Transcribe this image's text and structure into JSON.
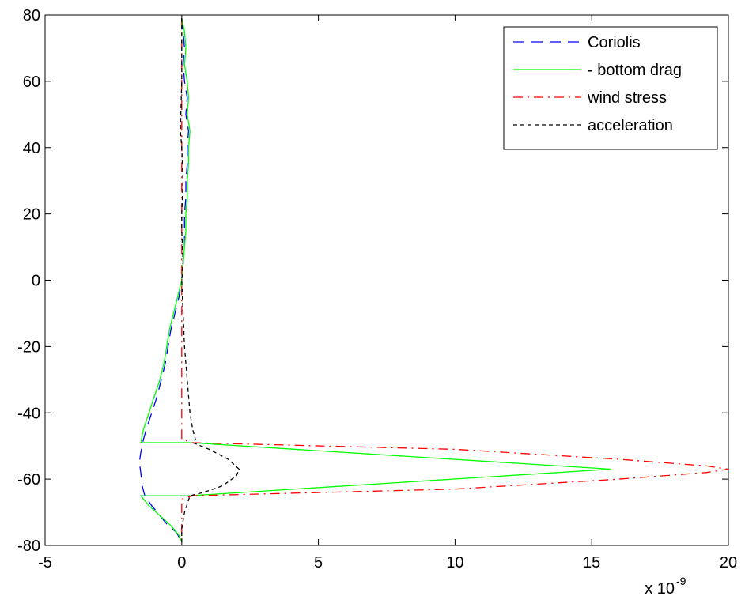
{
  "chart_data": {
    "type": "line",
    "title": "",
    "xlabel": "",
    "ylabel": "",
    "x_multiplier_label": "x 10",
    "x_multiplier_exponent": "-9",
    "xlim": [
      -5,
      20
    ],
    "ylim": [
      -80,
      80
    ],
    "xticks": [
      -5,
      0,
      5,
      10,
      15,
      20
    ],
    "yticks": [
      80,
      60,
      40,
      20,
      0,
      -20,
      -40,
      -60,
      -80
    ],
    "grid": false,
    "legend_position": "top-right",
    "series": [
      {
        "name": "Coriolis",
        "color": "#0000ff",
        "dash": "dashed-long",
        "points": [
          [
            0.0,
            79
          ],
          [
            0.05,
            75
          ],
          [
            0.1,
            70
          ],
          [
            0.05,
            65
          ],
          [
            0.1,
            60
          ],
          [
            0.2,
            55
          ],
          [
            0.15,
            50
          ],
          [
            0.25,
            45
          ],
          [
            0.2,
            40
          ],
          [
            0.2,
            35
          ],
          [
            0.15,
            30
          ],
          [
            0.15,
            25
          ],
          [
            0.1,
            20
          ],
          [
            0.1,
            15
          ],
          [
            0.1,
            10
          ],
          [
            0.05,
            5
          ],
          [
            0.0,
            0
          ],
          [
            -0.1,
            -5
          ],
          [
            -0.25,
            -10
          ],
          [
            -0.4,
            -15
          ],
          [
            -0.5,
            -20
          ],
          [
            -0.6,
            -25
          ],
          [
            -0.75,
            -30
          ],
          [
            -0.9,
            -35
          ],
          [
            -1.1,
            -40
          ],
          [
            -1.3,
            -45
          ],
          [
            -1.4,
            -48
          ],
          [
            -1.5,
            -52
          ],
          [
            -1.55,
            -55
          ],
          [
            -1.5,
            -58
          ],
          [
            -1.45,
            -62
          ],
          [
            -1.35,
            -65
          ],
          [
            -1.1,
            -68
          ],
          [
            -0.8,
            -71
          ],
          [
            -0.5,
            -74
          ],
          [
            -0.2,
            -76
          ],
          [
            0.0,
            -79
          ]
        ]
      },
      {
        "name": "- bottom drag",
        "color": "#00ff00",
        "dash": "solid",
        "points": [
          [
            0.0,
            79
          ],
          [
            0.1,
            75
          ],
          [
            0.15,
            70
          ],
          [
            0.1,
            65
          ],
          [
            0.2,
            60
          ],
          [
            0.25,
            55
          ],
          [
            0.2,
            50
          ],
          [
            0.3,
            45
          ],
          [
            0.25,
            40
          ],
          [
            0.25,
            35
          ],
          [
            0.2,
            30
          ],
          [
            0.2,
            25
          ],
          [
            0.15,
            20
          ],
          [
            0.15,
            15
          ],
          [
            0.1,
            10
          ],
          [
            0.05,
            5
          ],
          [
            0.0,
            0
          ],
          [
            -0.15,
            -5
          ],
          [
            -0.3,
            -10
          ],
          [
            -0.45,
            -15
          ],
          [
            -0.55,
            -20
          ],
          [
            -0.65,
            -25
          ],
          [
            -0.8,
            -30
          ],
          [
            -1.0,
            -35
          ],
          [
            -1.2,
            -40
          ],
          [
            -1.4,
            -45
          ],
          [
            -1.5,
            -49
          ],
          [
            0.3,
            -49
          ],
          [
            15.7,
            -57
          ],
          [
            0.3,
            -65
          ],
          [
            -1.5,
            -65
          ],
          [
            -1.2,
            -68
          ],
          [
            -0.8,
            -71
          ],
          [
            -0.4,
            -74
          ],
          [
            -0.1,
            -77
          ],
          [
            0.0,
            -79
          ]
        ]
      },
      {
        "name": "wind stress",
        "color": "#ff0000",
        "dash": "dash-dot",
        "points": [
          [
            0.0,
            79
          ],
          [
            0.0,
            50
          ],
          [
            0.0,
            0
          ],
          [
            0.0,
            -48
          ],
          [
            0.4,
            -49
          ],
          [
            10.0,
            -51
          ],
          [
            16.0,
            -54
          ],
          [
            19.2,
            -56
          ],
          [
            20.0,
            -57
          ],
          [
            19.2,
            -58
          ],
          [
            16.0,
            -60
          ],
          [
            10.0,
            -63
          ],
          [
            0.4,
            -65
          ],
          [
            0.0,
            -66
          ],
          [
            0.0,
            -79
          ]
        ]
      },
      {
        "name": "acceleration",
        "color": "#000000",
        "dash": "dotted-dash",
        "points": [
          [
            0.0,
            79
          ],
          [
            0.0,
            60
          ],
          [
            -0.05,
            45
          ],
          [
            0.0,
            40
          ],
          [
            0.05,
            30
          ],
          [
            0.0,
            20
          ],
          [
            0.0,
            15
          ],
          [
            0.05,
            5
          ],
          [
            0.0,
            0
          ],
          [
            0.05,
            -10
          ],
          [
            0.1,
            -20
          ],
          [
            0.2,
            -30
          ],
          [
            0.3,
            -40
          ],
          [
            0.4,
            -45
          ],
          [
            0.5,
            -48
          ],
          [
            0.4,
            -49
          ],
          [
            1.0,
            -51
          ],
          [
            1.7,
            -54
          ],
          [
            2.1,
            -57
          ],
          [
            2.0,
            -59
          ],
          [
            1.5,
            -62
          ],
          [
            0.8,
            -64
          ],
          [
            0.3,
            -65
          ],
          [
            0.1,
            -70
          ],
          [
            0.0,
            -75
          ],
          [
            0.0,
            -79
          ]
        ]
      }
    ]
  }
}
